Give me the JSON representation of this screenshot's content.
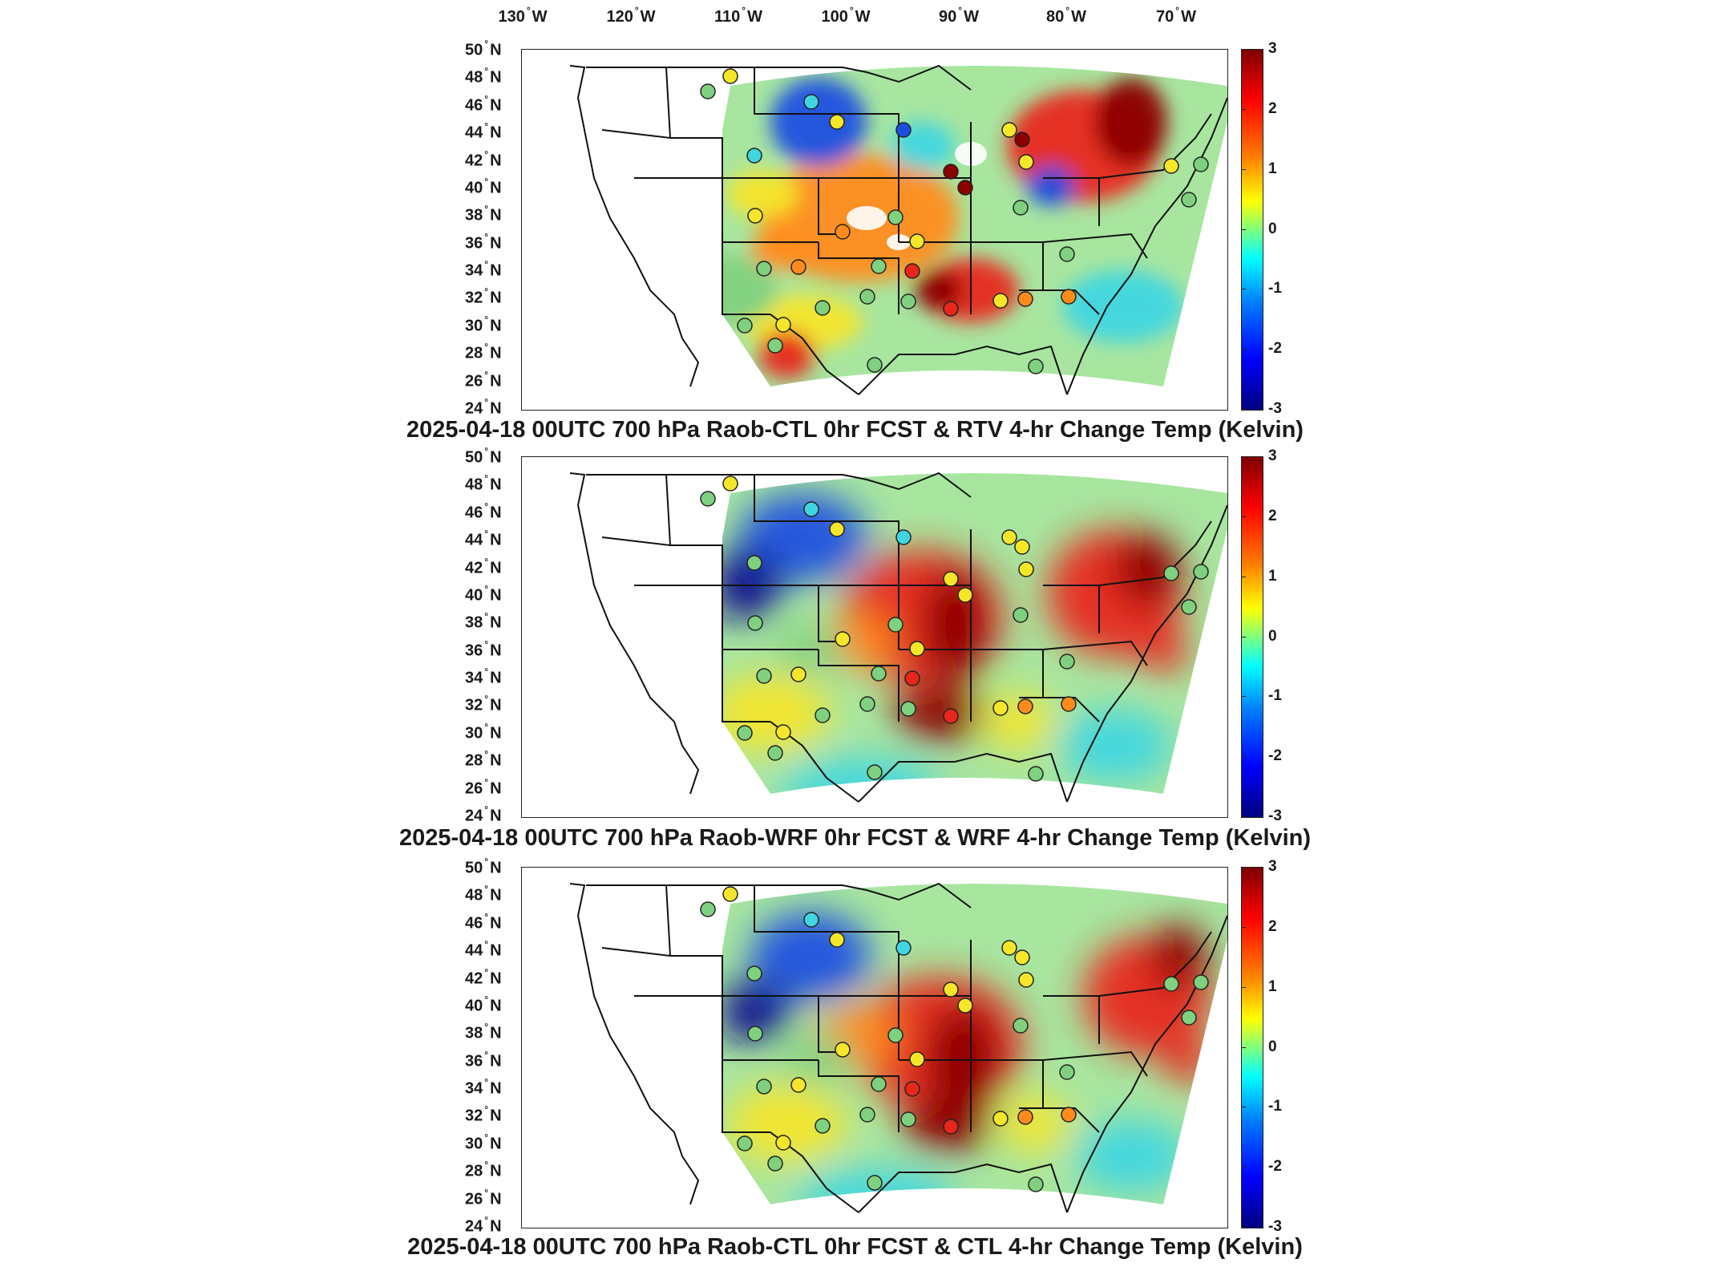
{
  "longitude_labels": [
    {
      "deg": "130",
      "hem": "W"
    },
    {
      "deg": "120",
      "hem": "W"
    },
    {
      "deg": "110",
      "hem": "W"
    },
    {
      "deg": "100",
      "hem": "W"
    },
    {
      "deg": "90",
      "hem": "W"
    },
    {
      "deg": "80",
      "hem": "W"
    },
    {
      "deg": "70",
      "hem": "W"
    }
  ],
  "latitude_labels": [
    {
      "deg": "50",
      "hem": "N"
    },
    {
      "deg": "48",
      "hem": "N"
    },
    {
      "deg": "46",
      "hem": "N"
    },
    {
      "deg": "44",
      "hem": "N"
    },
    {
      "deg": "42",
      "hem": "N"
    },
    {
      "deg": "40",
      "hem": "N"
    },
    {
      "deg": "38",
      "hem": "N"
    },
    {
      "deg": "36",
      "hem": "N"
    },
    {
      "deg": "34",
      "hem": "N"
    },
    {
      "deg": "32",
      "hem": "N"
    },
    {
      "deg": "30",
      "hem": "N"
    },
    {
      "deg": "28",
      "hem": "N"
    },
    {
      "deg": "26",
      "hem": "N"
    },
    {
      "deg": "24",
      "hem": "N"
    }
  ],
  "colorbar": {
    "range": [
      -3,
      3
    ],
    "ticks": [
      "3",
      "2",
      "1",
      "0",
      "-1",
      "-2",
      "-3"
    ],
    "colormap": "jet"
  },
  "panels": [
    {
      "title": "2025-04-18 00UTC 700 hPa Raob-CTL 0hr FCST & RTV 4-hr Change Temp (Kelvin)"
    },
    {
      "title": "2025-04-18 00UTC 700 hPa Raob-WRF 0hr FCST & WRF 4-hr Change Temp (Kelvin)"
    },
    {
      "title": "2025-04-18 00UTC 700 hPa Raob-CTL 0hr FCST & CTL 4-hr Change Temp (Kelvin)"
    }
  ],
  "colors": {
    "dark_red": "#8b0000",
    "red": "#e8261a",
    "orange": "#ff8c1a",
    "yellow": "#f5e62a",
    "green": "#7fd17f",
    "cyan": "#3fd6e0",
    "blue": "#1a4fe0",
    "dark_blue": "#0a0a8c"
  }
}
